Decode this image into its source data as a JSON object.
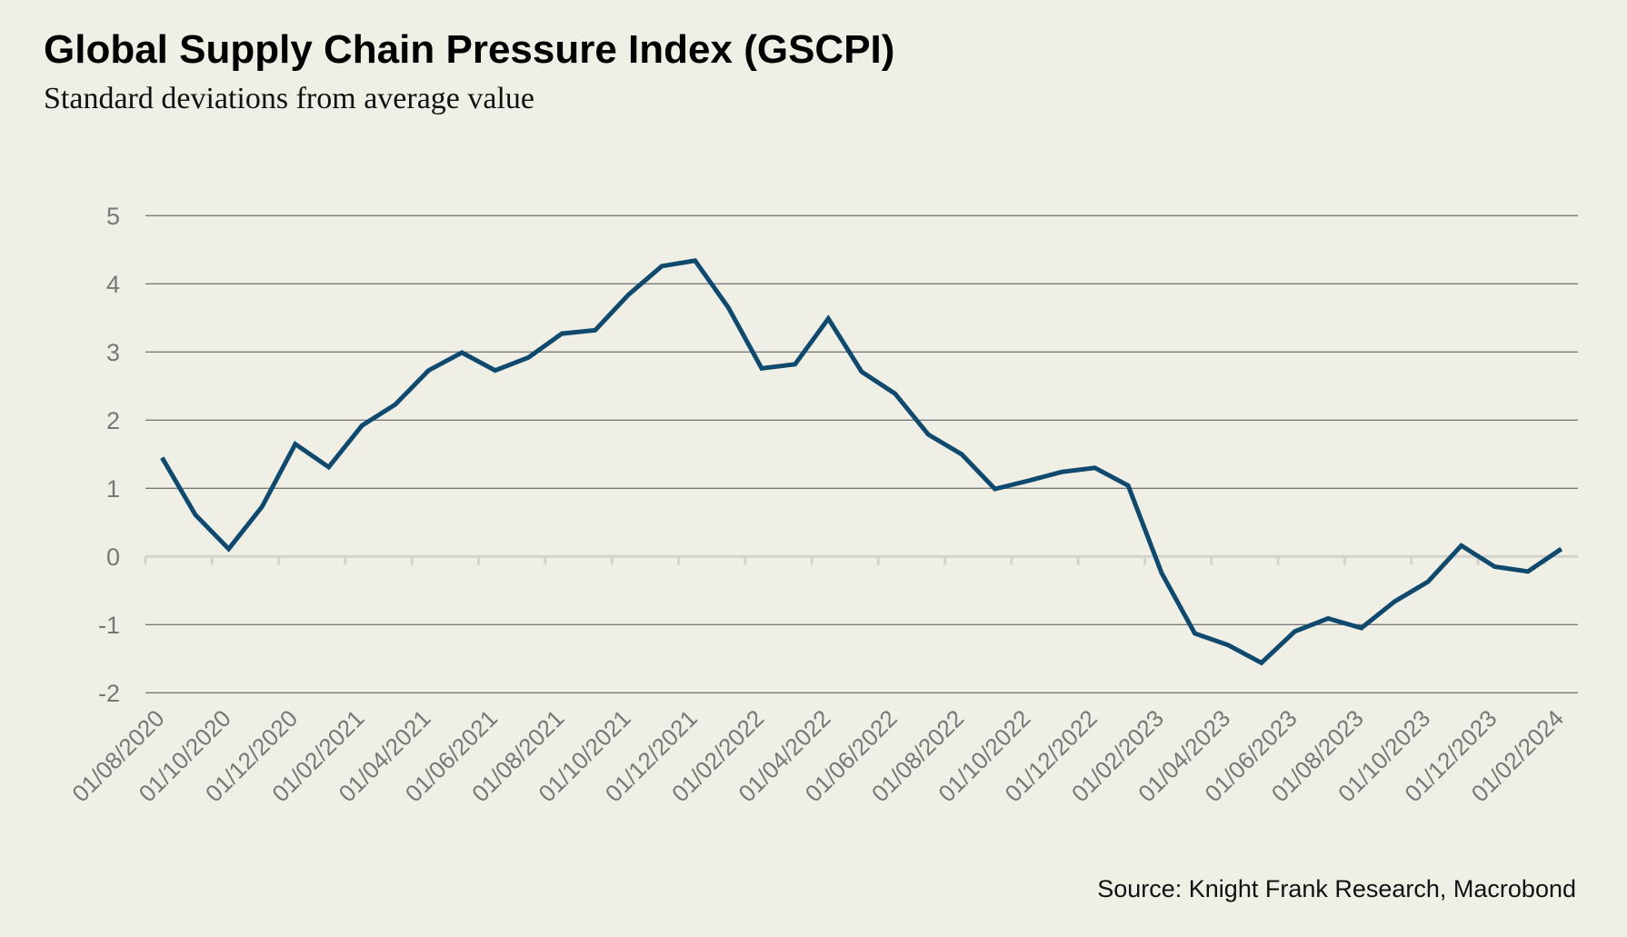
{
  "chart_data": {
    "type": "line",
    "title": "Global Supply Chain Pressure Index (GSCPI)",
    "subtitle": "Standard deviations from average value",
    "source": "Source: Knight Frank Research, Macrobond",
    "xlabel": "",
    "ylabel": "",
    "ylim": [
      -2,
      5
    ],
    "yticks": [
      5,
      4,
      3,
      2,
      1,
      0,
      -1,
      -2
    ],
    "grid": true,
    "legend": "none",
    "colors": {
      "background": "#f0efe6",
      "line": "#0f4a6e",
      "grid": "#7a7a7a",
      "zero_axis": "#d3d2cb",
      "tick_label": "#777777"
    },
    "x_tick_labels": [
      "01/08/2020",
      "01/10/2020",
      "01/12/2020",
      "01/02/2021",
      "01/04/2021",
      "01/06/2021",
      "01/08/2021",
      "01/10/2021",
      "01/12/2021",
      "01/02/2022",
      "01/04/2022",
      "01/06/2022",
      "01/08/2022",
      "01/10/2022",
      "01/12/2022",
      "01/02/2023",
      "01/04/2023",
      "01/06/2023",
      "01/08/2023",
      "01/10/2023",
      "01/12/2023",
      "01/02/2024"
    ],
    "x": [
      "01/08/2020",
      "01/09/2020",
      "01/10/2020",
      "01/11/2020",
      "01/12/2020",
      "01/01/2021",
      "01/02/2021",
      "01/03/2021",
      "01/04/2021",
      "01/05/2021",
      "01/06/2021",
      "01/07/2021",
      "01/08/2021",
      "01/09/2021",
      "01/10/2021",
      "01/11/2021",
      "01/12/2021",
      "01/01/2022",
      "01/02/2022",
      "01/03/2022",
      "01/04/2022",
      "01/05/2022",
      "01/06/2022",
      "01/07/2022",
      "01/08/2022",
      "01/09/2022",
      "01/10/2022",
      "01/11/2022",
      "01/12/2022",
      "01/01/2023",
      "01/02/2023",
      "01/03/2023",
      "01/04/2023",
      "01/05/2023",
      "01/06/2023",
      "01/07/2023",
      "01/08/2023",
      "01/09/2023",
      "01/10/2023",
      "01/11/2023",
      "01/12/2023",
      "01/01/2024",
      "01/02/2024"
    ],
    "series": [
      {
        "name": "GSCPI",
        "values": [
          1.45,
          0.61,
          0.11,
          0.73,
          1.65,
          1.31,
          1.92,
          2.23,
          2.73,
          2.99,
          2.73,
          2.92,
          3.27,
          3.32,
          3.84,
          4.26,
          4.34,
          3.65,
          2.76,
          2.82,
          3.49,
          2.71,
          2.39,
          1.79,
          1.5,
          0.99,
          1.11,
          1.24,
          1.3,
          1.04,
          -0.24,
          -1.13,
          -1.3,
          -1.56,
          -1.1,
          -0.91,
          -1.05,
          -0.66,
          -0.37,
          0.16,
          -0.15,
          -0.22,
          0.11
        ]
      }
    ]
  }
}
